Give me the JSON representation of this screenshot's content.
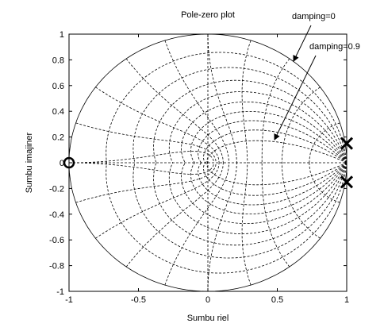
{
  "chart_data": {
    "type": "pzmap",
    "title": "Pole-zero plot",
    "x_label": "Sumbu riel",
    "y_label": "Sumbu imajiner",
    "poles": {
      "x": [
        1,
        1
      ],
      "y": [
        0.15,
        -0.15
      ]
    },
    "zeros": {
      "x": [
        -1
      ],
      "y": [
        0
      ]
    },
    "color": "#000000",
    "xlim": [
      -1,
      1
    ],
    "ylim": [
      -1,
      1
    ],
    "xticks": [
      -1,
      -0.5,
      0,
      0.5,
      1
    ],
    "yticks": [
      -1,
      -0.8,
      -0.6,
      -0.4,
      -0.2,
      0,
      0.2,
      0.4,
      0.6,
      0.8,
      1
    ],
    "grid": true,
    "annotations": [
      "damping=0",
      "damping=0.9"
    ]
  }
}
